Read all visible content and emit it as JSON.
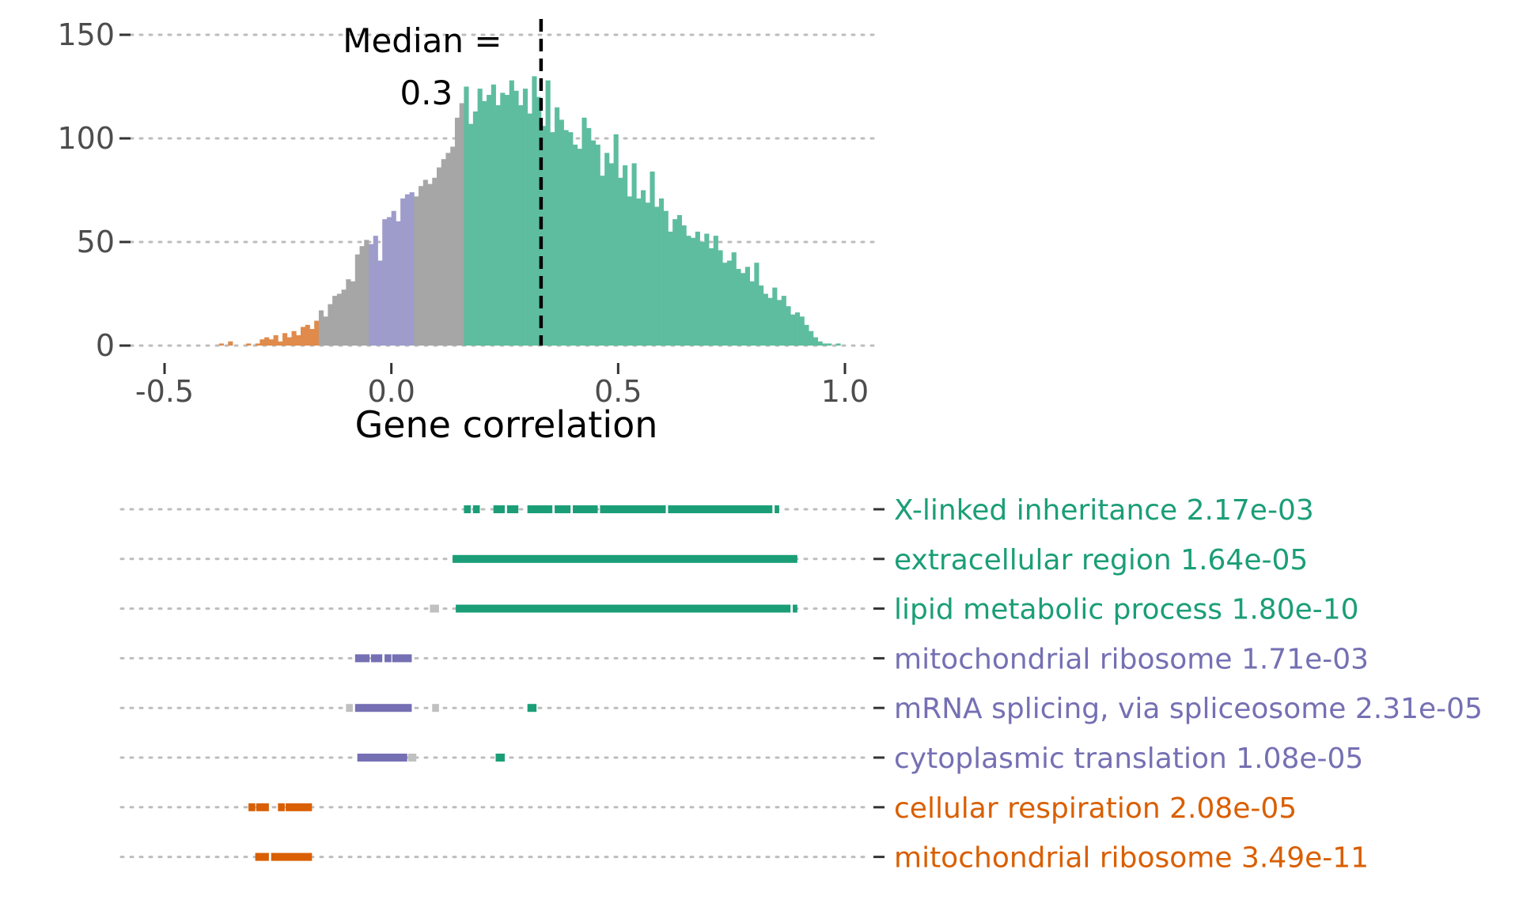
{
  "chart_data": [
    {
      "type": "bar",
      "subtype": "histogram",
      "title": "",
      "xlabel": "Gene correlation",
      "ylabel": "",
      "xlim": [
        -0.57,
        1.07
      ],
      "ylim": [
        0,
        150
      ],
      "xticks": [
        -0.5,
        0.0,
        0.5,
        1.0
      ],
      "xtick_labels": [
        "-0.5",
        "0.0",
        "0.5",
        "1.0"
      ],
      "yticks": [
        0,
        50,
        100,
        150
      ],
      "ytick_labels": [
        "0",
        "50",
        "100",
        "150"
      ],
      "grid": "horizontal dotted",
      "bin_start": -0.38,
      "bin_width": 0.01,
      "values": [
        1,
        0,
        2,
        0,
        0,
        0,
        1,
        0,
        1,
        3,
        4,
        3,
        5,
        2,
        6,
        4,
        7,
        5,
        9,
        10,
        8,
        12,
        17,
        14,
        20,
        24,
        25,
        27,
        32,
        31,
        44,
        48,
        51,
        49,
        53,
        41,
        61,
        62,
        65,
        60,
        71,
        73,
        74,
        72,
        77,
        80,
        78,
        81,
        86,
        90,
        93,
        96,
        110,
        117,
        125,
        107,
        113,
        124,
        118,
        121,
        126,
        116,
        122,
        121,
        128,
        123,
        116,
        124,
        112,
        130,
        120,
        106,
        128,
        103,
        115,
        109,
        104,
        103,
        97,
        95,
        110,
        105,
        99,
        97,
        82,
        93,
        88,
        102,
        81,
        87,
        72,
        88,
        71,
        75,
        69,
        84,
        67,
        71,
        65,
        55,
        61,
        63,
        58,
        53,
        52,
        55,
        50,
        54,
        47,
        53,
        46,
        40,
        41,
        45,
        37,
        35,
        38,
        31,
        40,
        29,
        25,
        23,
        28,
        22,
        24,
        19,
        15,
        16,
        14,
        10,
        7,
        4,
        2,
        1,
        1,
        0,
        1,
        0,
        0,
        0
      ],
      "series": [
        {
          "name": "orange",
          "range": [
            -0.38,
            -0.16
          ],
          "color": "#E08A4B"
        },
        {
          "name": "grey",
          "range": [
            -0.16,
            -0.05
          ],
          "color": "#A6A6A6"
        },
        {
          "name": "purple",
          "range": [
            -0.05,
            0.05
          ],
          "color": "#9E9CCB"
        },
        {
          "name": "grey",
          "range": [
            0.05,
            0.16
          ],
          "color": "#A6A6A6"
        },
        {
          "name": "green",
          "range": [
            0.16,
            0.94
          ],
          "color": "#5EBD9F"
        }
      ],
      "annotation": {
        "text_line1": "Median =",
        "text_line2": "0.3",
        "x": 0.33
      }
    },
    {
      "type": "table",
      "subtype": "term-position-strips",
      "xlim": [
        -0.57,
        1.07
      ],
      "rows": [
        {
          "term": "X-linked inheritance 2.17e-03",
          "color": "#1B9E77",
          "segments": [
            [
              0.16,
              0.175,
              "#1B9E77"
            ],
            [
              0.18,
              0.195,
              "#1B9E77"
            ],
            [
              0.225,
              0.25,
              "#1B9E77"
            ],
            [
              0.255,
              0.28,
              "#1B9E77"
            ],
            [
              0.3,
              0.355,
              "#1B9E77"
            ],
            [
              0.36,
              0.395,
              "#1B9E77"
            ],
            [
              0.4,
              0.455,
              "#1B9E77"
            ],
            [
              0.46,
              0.605,
              "#1B9E77"
            ],
            [
              0.61,
              0.84,
              "#1B9E77"
            ],
            [
              0.845,
              0.855,
              "#1B9E77"
            ]
          ]
        },
        {
          "term": "extracellular region 1.64e-05",
          "color": "#1B9E77",
          "segments": [
            [
              0.135,
              0.895,
              "#1B9E77"
            ]
          ]
        },
        {
          "term": "lipid metabolic process 1.80e-10",
          "color": "#1B9E77",
          "segments": [
            [
              0.085,
              0.105,
              "#C0C0C0"
            ],
            [
              0.142,
              0.88,
              "#1B9E77"
            ],
            [
              0.885,
              0.895,
              "#1B9E77"
            ]
          ]
        },
        {
          "term": "mitochondrial ribosome 1.71e-03",
          "color": "#7570B3",
          "segments": [
            [
              -0.08,
              -0.048,
              "#7570B3"
            ],
            [
              -0.045,
              -0.02,
              "#7570B3"
            ],
            [
              -0.015,
              0.0,
              "#7570B3"
            ],
            [
              0.002,
              0.045,
              "#7570B3"
            ]
          ]
        },
        {
          "term": "mRNA splicing, via spliceosome 2.31e-05",
          "color": "#7570B3",
          "segments": [
            [
              -0.1,
              -0.085,
              "#C0C0C0"
            ],
            [
              -0.08,
              0.045,
              "#7570B3"
            ],
            [
              0.09,
              0.105,
              "#C0C0C0"
            ],
            [
              0.3,
              0.32,
              "#1B9E77"
            ]
          ]
        },
        {
          "term": "cytoplasmic translation 1.08e-05",
          "color": "#7570B3",
          "segments": [
            [
              -0.075,
              0.035,
              "#7570B3"
            ],
            [
              0.037,
              0.055,
              "#C0C0C0"
            ],
            [
              0.23,
              0.25,
              "#1B9E77"
            ]
          ]
        },
        {
          "term": "cellular respiration 2.08e-05",
          "color": "#D95F02",
          "segments": [
            [
              -0.315,
              -0.3,
              "#D95F02"
            ],
            [
              -0.298,
              -0.27,
              "#D95F02"
            ],
            [
              -0.25,
              -0.235,
              "#D95F02"
            ],
            [
              -0.233,
              -0.175,
              "#D95F02"
            ]
          ]
        },
        {
          "term": "mitochondrial ribosome 3.49e-11",
          "color": "#D95F02",
          "segments": [
            [
              -0.3,
              -0.27,
              "#D95F02"
            ],
            [
              -0.265,
              -0.175,
              "#D95F02"
            ]
          ]
        }
      ]
    }
  ]
}
